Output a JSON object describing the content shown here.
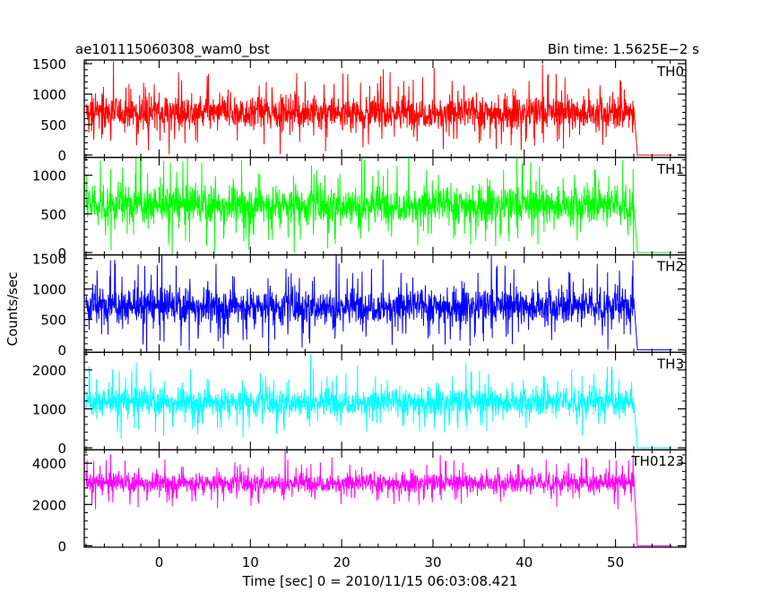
{
  "chart_data": {
    "type": "line",
    "title_left": "ae101115060308_wam0_bst",
    "title_right": "Bin time: 1.5625E−2 s",
    "xlabel": "Time [sec] 0 = 2010/11/15 06:03:08.421",
    "ylabel": "Counts/sec",
    "xlim": [
      -8.2,
      57.7
    ],
    "xticks": [
      0,
      10,
      20,
      30,
      40,
      50
    ],
    "burst_start": -8.0,
    "burst_end": 52.0,
    "grid": false,
    "panels": [
      {
        "name": "TH0",
        "color": "#ff0000",
        "ylim": [
          -40,
          1560
        ],
        "yticks": [
          0,
          500,
          1000,
          1500
        ],
        "mean": 700,
        "spread": 380,
        "tail_level": 0
      },
      {
        "name": "TH1",
        "color": "#00ff00",
        "ylim": [
          -30,
          1230
        ],
        "yticks": [
          0,
          500,
          1000
        ],
        "mean": 620,
        "spread": 330,
        "tail_level": 0
      },
      {
        "name": "TH2",
        "color": "#0000ff",
        "ylim": [
          -40,
          1560
        ],
        "yticks": [
          0,
          500,
          1000,
          1500
        ],
        "mean": 720,
        "spread": 400,
        "tail_level": 0
      },
      {
        "name": "TH3",
        "color": "#00ffff",
        "ylim": [
          -50,
          2450
        ],
        "yticks": [
          0,
          1000,
          2000
        ],
        "mean": 1180,
        "spread": 480,
        "tail_level": 0
      },
      {
        "name": "TH0123",
        "color": "#ff00ff",
        "ylim": [
          -70,
          4650
        ],
        "yticks": [
          0,
          2000,
          4000
        ],
        "mean": 3050,
        "spread": 650,
        "tail_level": 0
      }
    ]
  }
}
